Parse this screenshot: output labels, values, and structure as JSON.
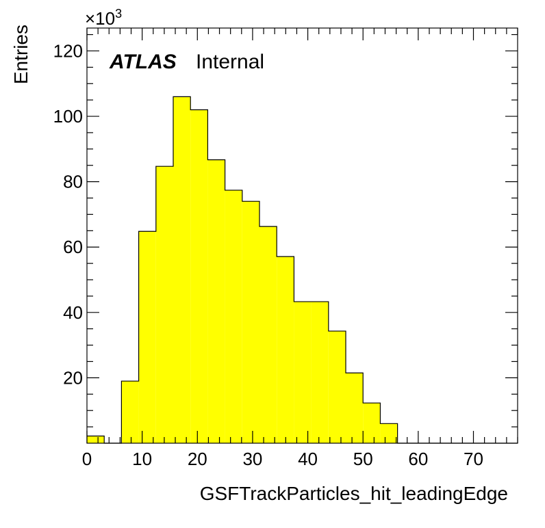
{
  "chart_data": {
    "type": "bar",
    "style": "histogram",
    "xlabel": "GSFTrackParticles_hit_leadingEdge",
    "ylabel": "Entries",
    "y_multiplier": "×10",
    "y_multiplier_exponent": "3",
    "label_bold": "ATLAS",
    "label_text": "Internal",
    "xlim": [
      0,
      78
    ],
    "ylim": [
      0,
      127
    ],
    "xticks": [
      0,
      10,
      20,
      30,
      40,
      50,
      60,
      70
    ],
    "yticks": [
      20,
      40,
      60,
      80,
      100,
      120
    ],
    "bin_edges": [
      0,
      3.125,
      6.25,
      9.375,
      12.5,
      15.625,
      18.75,
      21.875,
      25,
      28.125,
      31.25,
      34.375,
      37.5,
      40.625,
      43.75,
      46.875,
      50,
      53.125,
      56.25,
      59.375,
      62.5,
      65.625,
      68.75,
      71.875,
      75,
      78.125
    ],
    "values": [
      2.2,
      0,
      19,
      64.8,
      84.7,
      106,
      102,
      86.7,
      77.4,
      74,
      66.3,
      57.1,
      43.3,
      43.3,
      34.3,
      21.5,
      12.3,
      6,
      0,
      0,
      0,
      0,
      0,
      0,
      0
    ],
    "fill_color": "#ffff00",
    "line_color": "#000000",
    "grid": false
  }
}
